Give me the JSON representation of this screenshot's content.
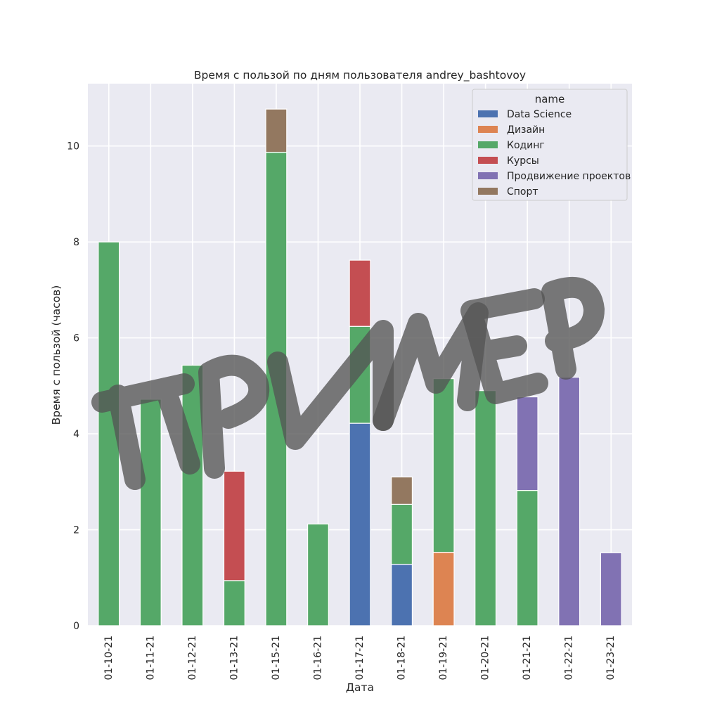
{
  "chart_data": {
    "type": "bar",
    "stacked": true,
    "title": "Время с пользой по дням пользователя andrey_bashtovoy",
    "xlabel": "Дата",
    "ylabel": "Время с пользой (часов)",
    "ylim": [
      0,
      11.3
    ],
    "yticks": [
      0,
      2,
      4,
      6,
      8,
      10
    ],
    "grid": true,
    "legend": {
      "title": "name",
      "position": "top-right"
    },
    "categories": [
      "01-10-21",
      "01-11-21",
      "01-12-21",
      "01-13-21",
      "01-15-21",
      "01-16-21",
      "01-17-21",
      "01-18-21",
      "01-19-21",
      "01-20-21",
      "01-21-21",
      "01-22-21",
      "01-23-21"
    ],
    "series": [
      {
        "name": "Data Science",
        "color": "#4c72b0",
        "values": [
          0,
          0,
          0,
          0,
          0,
          0,
          4.22,
          1.28,
          0,
          0,
          0,
          0,
          0
        ]
      },
      {
        "name": "Дизайн",
        "color": "#dd8452",
        "values": [
          0,
          0,
          0,
          0,
          0,
          0,
          0,
          0,
          1.53,
          0,
          0,
          0,
          0
        ]
      },
      {
        "name": "Кодинг",
        "color": "#55a868",
        "values": [
          8.0,
          4.72,
          5.43,
          0.94,
          9.87,
          2.12,
          2.02,
          1.25,
          3.62,
          4.9,
          2.82,
          0,
          0
        ]
      },
      {
        "name": "Курсы",
        "color": "#c44e52",
        "values": [
          0,
          0,
          0,
          2.28,
          0,
          0,
          1.38,
          0,
          0,
          0,
          0,
          0,
          0
        ]
      },
      {
        "name": "Продвижение проектов",
        "color": "#8172b3",
        "values": [
          0,
          0,
          0,
          0,
          0,
          0,
          0,
          0,
          0,
          0,
          1.95,
          5.18,
          1.52
        ]
      },
      {
        "name": "Спорт",
        "color": "#937860",
        "values": [
          0,
          0,
          0,
          0,
          0.9,
          0,
          0,
          0.57,
          0,
          0,
          0,
          0,
          0
        ]
      }
    ]
  },
  "watermark": {
    "label": "ПРИМЕР",
    "color": "#555555"
  }
}
